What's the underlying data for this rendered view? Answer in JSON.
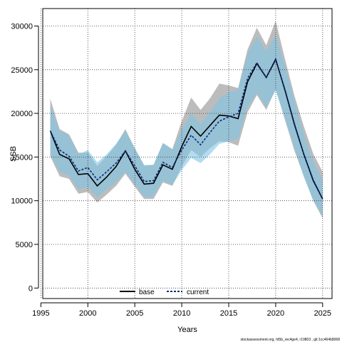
{
  "chart_data": {
    "type": "line",
    "title": "",
    "xlabel": "Years",
    "ylabel": "SSB",
    "xlim": [
      1995.2,
      2026.0
    ],
    "ylim": [
      -1200,
      32000
    ],
    "x_ticks": [
      1995,
      2000,
      2005,
      2010,
      2015,
      2020,
      2025
    ],
    "y_ticks": [
      0,
      5000,
      10000,
      15000,
      20000,
      25000,
      30000
    ],
    "grid": true,
    "legend_position": "bottom-center",
    "x": [
      1996,
      1997,
      1998,
      1999,
      2000,
      2001,
      2002,
      2003,
      2004,
      2005,
      2006,
      2007,
      2008,
      2009,
      2010,
      2011,
      2012,
      2013,
      2014,
      2015,
      2016,
      2017,
      2018,
      2019,
      2020,
      2021,
      2022,
      2023,
      2024,
      2025
    ],
    "series": [
      {
        "name": "base",
        "color": "#000000",
        "line_style": "solid",
        "band_color": "#a6a6a6",
        "values": [
          18000,
          15300,
          14800,
          13000,
          13100,
          11700,
          12700,
          13900,
          15700,
          13600,
          11900,
          12000,
          14100,
          13600,
          16200,
          18500,
          17400,
          18600,
          19800,
          19700,
          19400,
          23600,
          25700,
          24100,
          26200,
          22600,
          18700,
          15300,
          12300,
          10200
        ],
        "lower": [
          15100,
          12800,
          12500,
          10800,
          11000,
          9800,
          10700,
          11700,
          13100,
          11600,
          10200,
          10200,
          12100,
          11700,
          13900,
          15800,
          15000,
          16000,
          16800,
          16700,
          16300,
          20100,
          22100,
          20400,
          22800,
          19200,
          15700,
          12800,
          10000,
          8000
        ],
        "upper": [
          21700,
          18200,
          17600,
          15500,
          15500,
          14000,
          15100,
          16400,
          18200,
          16000,
          14000,
          14100,
          16600,
          15900,
          19100,
          21800,
          20400,
          21700,
          23400,
          23200,
          22900,
          27300,
          29800,
          27800,
          30600,
          26200,
          22000,
          18500,
          15400,
          13300
        ]
      },
      {
        "name": "current",
        "color": "#0a2a7a",
        "line_style": "dashed",
        "band_color": "#7ec4e6",
        "values": [
          18000,
          15800,
          15100,
          13400,
          13800,
          12400,
          13300,
          14300,
          15700,
          14000,
          12200,
          12300,
          14400,
          13800,
          15800,
          17500,
          16400,
          17800,
          19100,
          19600,
          20000,
          24000,
          25800,
          24100,
          26100,
          22700,
          18800,
          15300,
          12400,
          10200
        ],
        "lower": [
          15400,
          13300,
          12900,
          11300,
          11600,
          10400,
          11300,
          12100,
          13300,
          11900,
          10400,
          10500,
          12300,
          11800,
          13500,
          14900,
          14300,
          15300,
          16500,
          16800,
          17100,
          20700,
          22300,
          20700,
          22600,
          19400,
          16000,
          12700,
          10100,
          8200
        ],
        "upper": [
          20900,
          18000,
          17500,
          15300,
          15800,
          14400,
          15300,
          16500,
          18000,
          16000,
          14100,
          14100,
          16600,
          15900,
          18100,
          20000,
          18800,
          20100,
          21700,
          22400,
          22700,
          26800,
          28800,
          27100,
          29000,
          25500,
          21500,
          17600,
          14500,
          12400
        ]
      }
    ]
  },
  "footnote": "stockassessment.org, ht5b_rec4ge4, r19803 , git:1cc464b8068"
}
